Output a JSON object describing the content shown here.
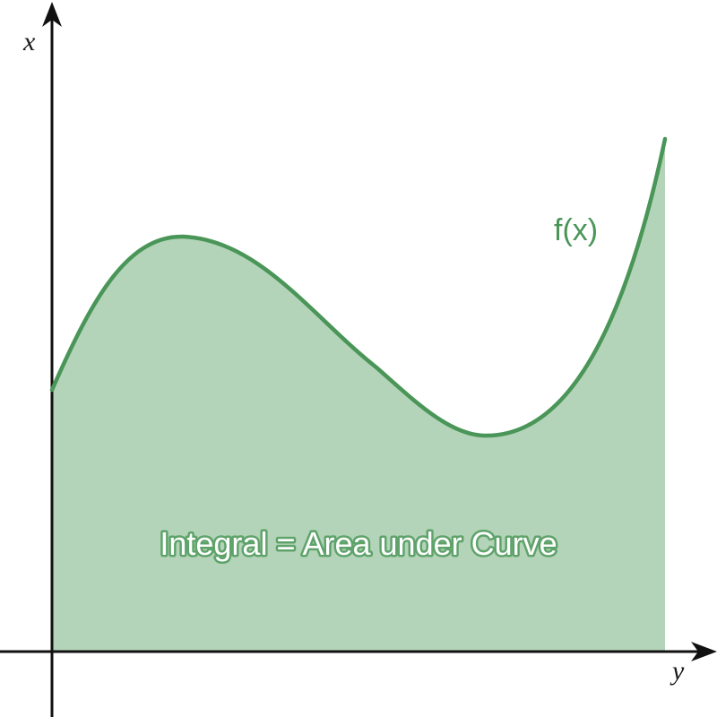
{
  "labels": {
    "vertical_axis": "x",
    "horizontal_axis": "y",
    "curve": "f(x)",
    "area": "Integral = Area under Curve"
  },
  "colors": {
    "curve": "#4a9558",
    "area_fill": "#b3d4b8",
    "axis": "#111111",
    "label_outline": "#5fa36b"
  }
}
